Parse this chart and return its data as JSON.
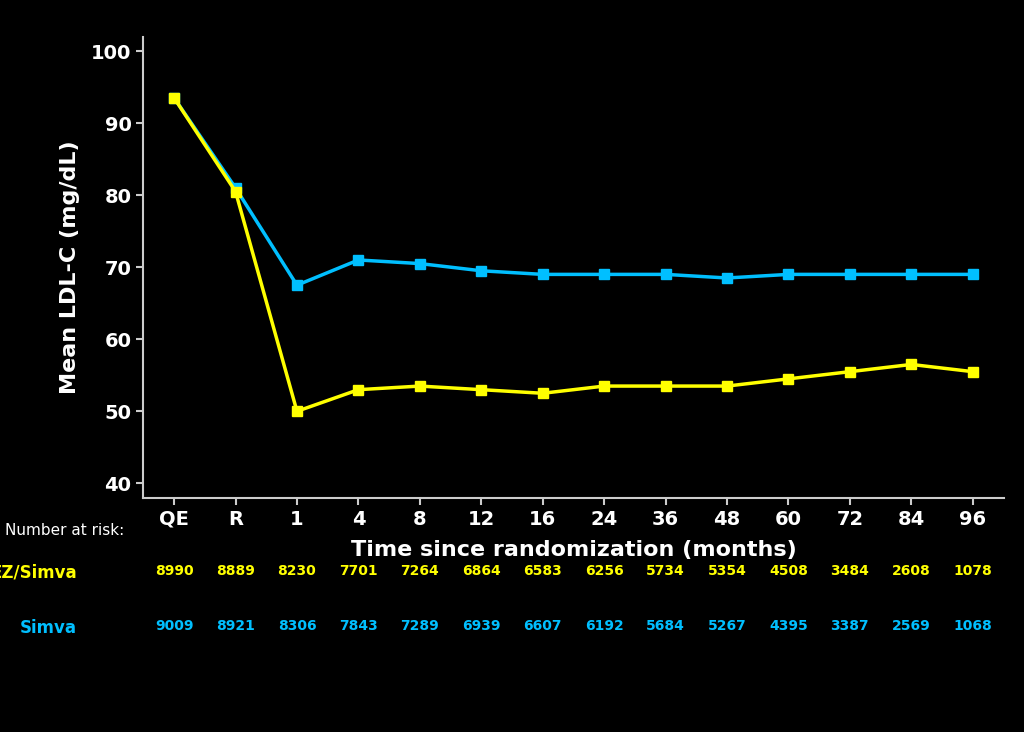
{
  "background_color": "#000000",
  "plot_bg_color": "#000000",
  "ylabel": "Mean LDL-C (mg/dL)",
  "xlabel": "Time since randomization (months)",
  "ylim": [
    38,
    102
  ],
  "yticks": [
    40,
    50,
    60,
    70,
    80,
    90,
    100
  ],
  "x_labels": [
    "QE",
    "R",
    "1",
    "4",
    "8",
    "12",
    "16",
    "24",
    "36",
    "48",
    "60",
    "72",
    "84",
    "96"
  ],
  "x_positions": [
    0,
    1,
    2,
    3,
    4,
    5,
    6,
    7,
    8,
    9,
    10,
    11,
    12,
    13
  ],
  "simva_y": [
    93.5,
    81.0,
    67.5,
    71.0,
    70.5,
    69.5,
    69.0,
    69.0,
    69.0,
    68.5,
    69.0,
    69.0,
    69.0,
    69.0
  ],
  "ez_simva_y": [
    93.5,
    80.5,
    50.0,
    53.0,
    53.5,
    53.0,
    52.5,
    53.5,
    53.5,
    53.5,
    54.5,
    55.5,
    56.5,
    55.5
  ],
  "simva_color": "#00BFFF",
  "ez_simva_color": "#FFFF00",
  "text_color": "#FFFFFF",
  "axis_color": "#CCCCCC",
  "ylabel_fontsize": 16,
  "xlabel_fontsize": 16,
  "tick_fontsize": 14,
  "marker_size": 7,
  "line_width": 2.5,
  "number_at_risk_label": "Number at risk:",
  "ez_simva_label": "EZ/Simva",
  "simva_label": "Simva",
  "ez_simva_risk": [
    8990,
    8889,
    8230,
    7701,
    7264,
    6864,
    6583,
    6256,
    5734,
    5354,
    4508,
    3484,
    2608,
    1078
  ],
  "simva_risk": [
    9009,
    8921,
    8306,
    7843,
    7289,
    6939,
    6607,
    6192,
    5684,
    5267,
    4395,
    3387,
    2569,
    1068
  ]
}
